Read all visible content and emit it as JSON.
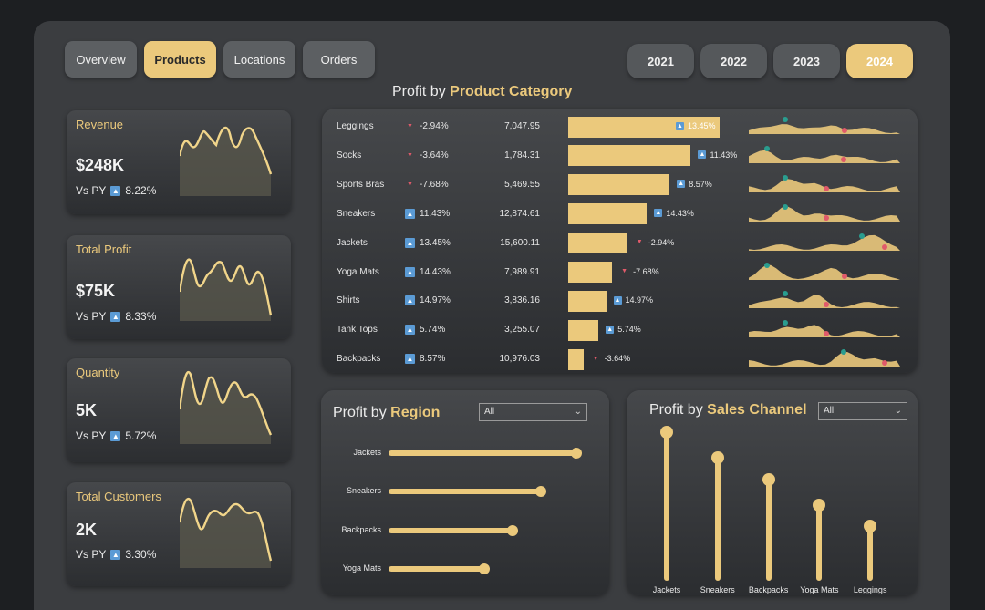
{
  "nav": {
    "tabs": [
      "Overview",
      "Products",
      "Locations",
      "Orders"
    ],
    "active": "Products"
  },
  "years": {
    "items": [
      "2021",
      "2022",
      "2023",
      "2024"
    ],
    "active": "2024"
  },
  "kpis": [
    {
      "label": "Revenue",
      "value": "$248K",
      "vs_label": "Vs PY",
      "change": "8.22%"
    },
    {
      "label": "Total Profit",
      "value": "$75K",
      "vs_label": "Vs PY",
      "change": "8.33%"
    },
    {
      "label": "Quantity",
      "value": "5K",
      "vs_label": "Vs PY",
      "change": "5.72%"
    },
    {
      "label": "Total Customers",
      "value": "2K",
      "vs_label": "Vs PY",
      "change": "3.30%"
    }
  ],
  "category": {
    "title_prefix": "Profit by ",
    "title_highlight": "Product Category",
    "rows": [
      {
        "name": "Leggings",
        "yoy": "-2.94%",
        "yoy_dir": "down",
        "value": "7,047.95",
        "bar": 100,
        "bar_label": "13.45%",
        "bar_dir": "up"
      },
      {
        "name": "Socks",
        "yoy": "-3.64%",
        "yoy_dir": "down",
        "value": "1,784.31",
        "bar": 81,
        "bar_label": "11.43%",
        "bar_dir": "up"
      },
      {
        "name": "Sports Bras",
        "yoy": "-7.68%",
        "yoy_dir": "down",
        "value": "5,469.55",
        "bar": 67,
        "bar_label": "8.57%",
        "bar_dir": "up"
      },
      {
        "name": "Sneakers",
        "yoy": "11.43%",
        "yoy_dir": "up",
        "value": "12,874.61",
        "bar": 52,
        "bar_label": "14.43%",
        "bar_dir": "up"
      },
      {
        "name": "Jackets",
        "yoy": "13.45%",
        "yoy_dir": "up",
        "value": "15,600.11",
        "bar": 39,
        "bar_label": "-2.94%",
        "bar_dir": "down"
      },
      {
        "name": "Yoga Mats",
        "yoy": "14.43%",
        "yoy_dir": "up",
        "value": "7,989.91",
        "bar": 29,
        "bar_label": "-7.68%",
        "bar_dir": "down"
      },
      {
        "name": "Shirts",
        "yoy": "14.97%",
        "yoy_dir": "up",
        "value": "3,836.16",
        "bar": 25,
        "bar_label": "14.97%",
        "bar_dir": "up"
      },
      {
        "name": "Tank Tops",
        "yoy": "5.74%",
        "yoy_dir": "up",
        "value": "3,255.07",
        "bar": 20,
        "bar_label": "5.74%",
        "bar_dir": "up"
      },
      {
        "name": "Backpacks",
        "yoy": "8.57%",
        "yoy_dir": "up",
        "value": "10,976.03",
        "bar": 10,
        "bar_label": "-3.64%",
        "bar_dir": "down"
      }
    ]
  },
  "region": {
    "title_prefix": "Profit by ",
    "title_highlight": "Region",
    "filter": "All",
    "items": [
      {
        "label": "Jackets",
        "value": 100
      },
      {
        "label": "Sneakers",
        "value": 81
      },
      {
        "label": "Backpacks",
        "value": 66
      },
      {
        "label": "Yoga Mats",
        "value": 51
      }
    ]
  },
  "channel": {
    "title_prefix": "Profit by ",
    "title_highlight": "Sales Channel",
    "filter": "All",
    "items": [
      {
        "label": "Jackets",
        "value": 100
      },
      {
        "label": "Sneakers",
        "value": 83
      },
      {
        "label": "Backpacks",
        "value": 68
      },
      {
        "label": "Yoga Mats",
        "value": 51
      },
      {
        "label": "Leggings",
        "value": 37
      }
    ]
  },
  "colors": {
    "accent": "#ebc97c",
    "up": "#5b9bd5",
    "down": "#e05a6a",
    "peak_dot": "#2a9d8f"
  }
}
